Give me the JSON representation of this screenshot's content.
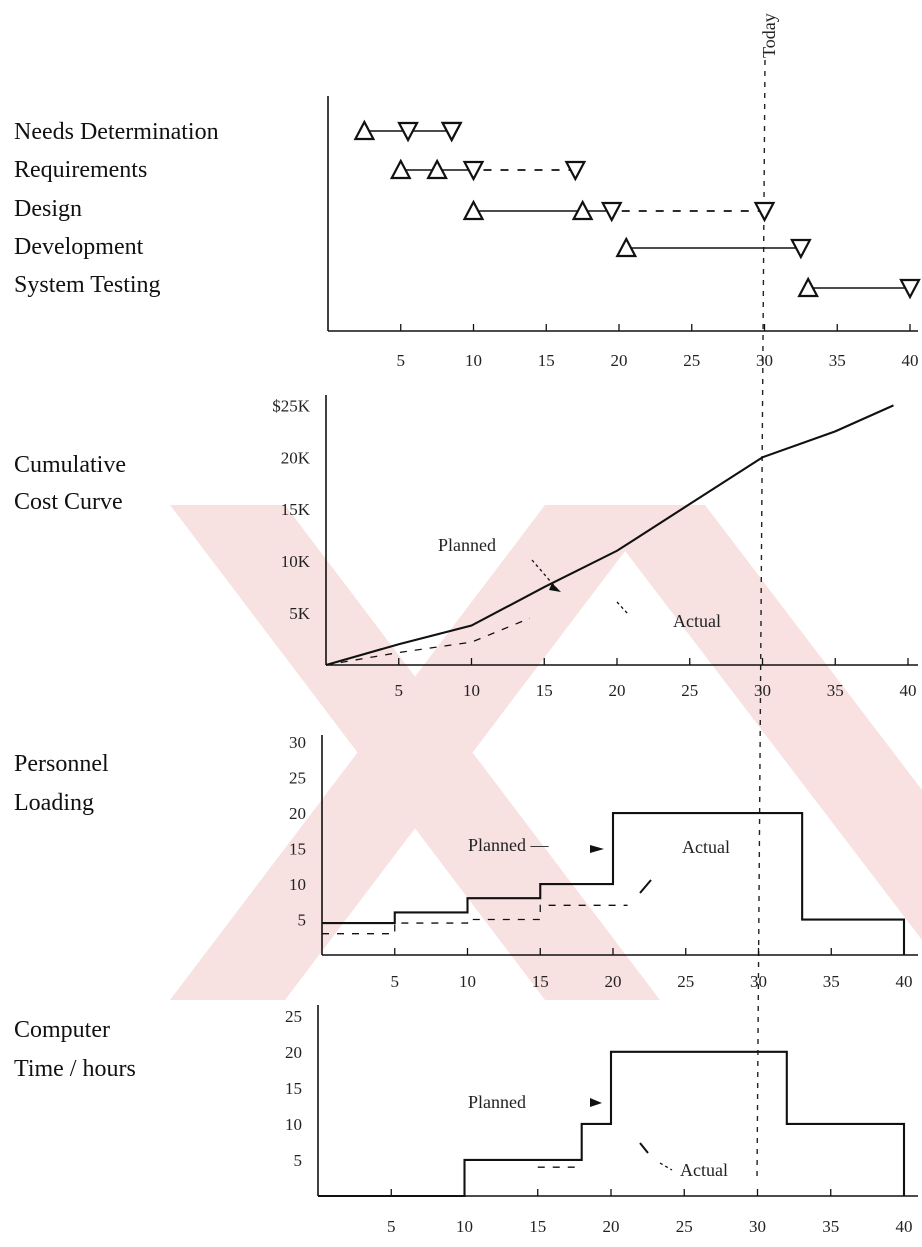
{
  "colors": {
    "ink": "#111111",
    "watermark": "#f4c9c9"
  },
  "today_label": "Today",
  "today_x": 30,
  "chart_data": [
    {
      "type": "gantt",
      "x_ticks": [
        5,
        10,
        15,
        20,
        25,
        30,
        35,
        40
      ],
      "xlim": [
        0,
        40
      ],
      "tasks": [
        {
          "label": "Needs Determination",
          "start": 2.5,
          "milestones": [
            5.5,
            8.5
          ],
          "end": 8.5,
          "dashed_to": null
        },
        {
          "label": "Requirements",
          "start": 5,
          "milestones": [
            7.5
          ],
          "end": 10,
          "dashed_to": 17
        },
        {
          "label": "Design",
          "start": 10,
          "milestones": [
            17.5
          ],
          "end": 19.5,
          "dashed_to": 30
        },
        {
          "label": "Development",
          "start": 20.5,
          "milestones": [],
          "end": 32.5,
          "dashed_to": null
        },
        {
          "label": "System Testing",
          "start": 33,
          "milestones": [],
          "end": 40,
          "dashed_to": null
        }
      ]
    },
    {
      "type": "line",
      "title": "Cumulative Cost Curve",
      "x_ticks": [
        5,
        10,
        15,
        20,
        25,
        30,
        35,
        40
      ],
      "y_ticks": [
        {
          "v": 5,
          "label": "5K"
        },
        {
          "v": 10,
          "label": "10K"
        },
        {
          "v": 15,
          "label": "15K"
        },
        {
          "v": 20,
          "label": "20K"
        },
        {
          "v": 25,
          "label": "$25K"
        }
      ],
      "xlim": [
        0,
        40
      ],
      "ylim": [
        0,
        26
      ],
      "series": [
        {
          "name": "Planned",
          "style": "solid",
          "x": [
            0,
            5,
            10,
            15,
            20,
            25,
            30,
            35,
            39
          ],
          "y": [
            0,
            2,
            3.8,
            7.5,
            11,
            15.5,
            20,
            22.5,
            25
          ]
        },
        {
          "name": "Actual",
          "style": "dashed",
          "x": [
            0,
            5,
            10,
            14
          ],
          "y": [
            0,
            1.2,
            2.2,
            4.5
          ]
        }
      ],
      "annotations": {
        "planned": "Planned",
        "actual": "Actual"
      }
    },
    {
      "type": "step",
      "title": "Personnel Loading",
      "x_ticks": [
        5,
        10,
        15,
        20,
        25,
        30,
        35,
        40
      ],
      "y_ticks": [
        {
          "v": 5,
          "label": "5"
        },
        {
          "v": 10,
          "label": "10"
        },
        {
          "v": 15,
          "label": "15"
        },
        {
          "v": 20,
          "label": "20"
        },
        {
          "v": 25,
          "label": "25"
        },
        {
          "v": 30,
          "label": "30"
        }
      ],
      "xlim": [
        0,
        40
      ],
      "ylim": [
        0,
        31
      ],
      "series": [
        {
          "name": "Planned",
          "style": "solid",
          "x": [
            0,
            5,
            10,
            15,
            20,
            33,
            40
          ],
          "y": [
            4.5,
            6,
            8,
            10,
            20,
            5,
            0
          ]
        },
        {
          "name": "Actual",
          "style": "dashed",
          "x": [
            0,
            5,
            10,
            15,
            21
          ],
          "y": [
            3,
            4.5,
            5,
            7,
            7
          ]
        }
      ],
      "annotations": {
        "planned": "Planned —",
        "actual": "Actual"
      }
    },
    {
      "type": "step",
      "title": "Computer Time / hours",
      "x_ticks": [
        5,
        10,
        15,
        20,
        25,
        30,
        35,
        40
      ],
      "y_ticks": [
        {
          "v": 5,
          "label": "5"
        },
        {
          "v": 10,
          "label": "10"
        },
        {
          "v": 15,
          "label": "15"
        },
        {
          "v": 20,
          "label": "20"
        },
        {
          "v": 25,
          "label": "25"
        }
      ],
      "xlim": [
        0,
        40
      ],
      "ylim": [
        0,
        26.5
      ],
      "series": [
        {
          "name": "Planned",
          "style": "solid",
          "x": [
            0,
            10,
            18,
            20,
            32,
            40
          ],
          "y": [
            0,
            5,
            10,
            20,
            10,
            0
          ]
        },
        {
          "name": "Actual",
          "style": "dashed",
          "x": [
            15,
            18
          ],
          "y": [
            4,
            4
          ]
        }
      ],
      "annotations": {
        "planned": "Planned",
        "actual": "Actual"
      }
    }
  ],
  "side_labels": {
    "cost": [
      "Cumulative",
      "Cost Curve"
    ],
    "personnel": [
      "Personnel",
      "Loading"
    ],
    "computer": [
      "Computer",
      "Time / hours"
    ]
  }
}
